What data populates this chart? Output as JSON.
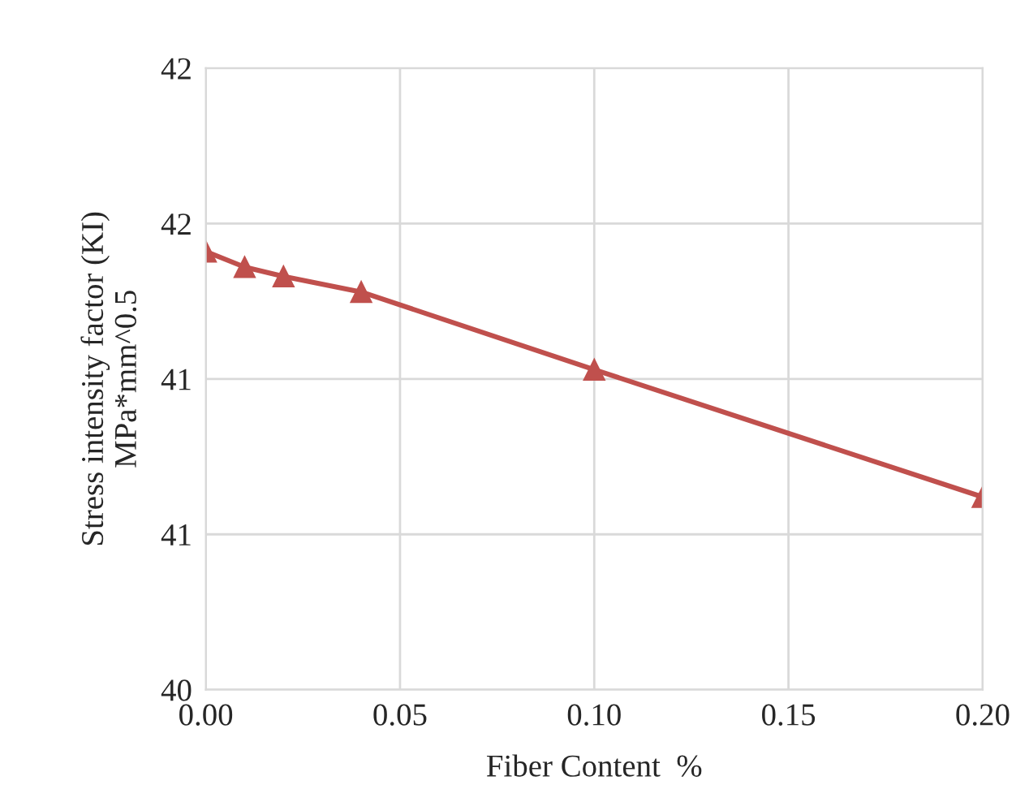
{
  "chart_data": {
    "type": "line",
    "xlabel": "Fiber Content  %",
    "ylabel": "Stress intensity factor (KI)\nMPa*mm^0.5",
    "x": [
      0,
      0.01,
      0.02,
      0.04,
      0.1,
      0.2
    ],
    "series": [
      {
        "color": "#c0504d",
        "values": [
          41.41,
          41.36,
          41.33,
          41.28,
          41.03,
          40.62
        ]
      }
    ],
    "xlim": [
      0,
      0.2
    ],
    "xticks": [
      {
        "value": 0,
        "label": "0.00"
      },
      {
        "value": 0.05,
        "label": "0.05"
      },
      {
        "value": 0.1,
        "label": "0.10"
      },
      {
        "value": 0.15,
        "label": "0.15"
      },
      {
        "value": 0.2,
        "label": "0.20"
      }
    ],
    "ylim": [
      40,
      42
    ],
    "yticks": [
      40,
      {
        "value": 40.5,
        "label": "41"
      },
      41,
      {
        "value": 41.5,
        "label": "42"
      },
      42
    ],
    "grid": true,
    "marker": "triangle",
    "line_style": "solid",
    "legend": false
  }
}
